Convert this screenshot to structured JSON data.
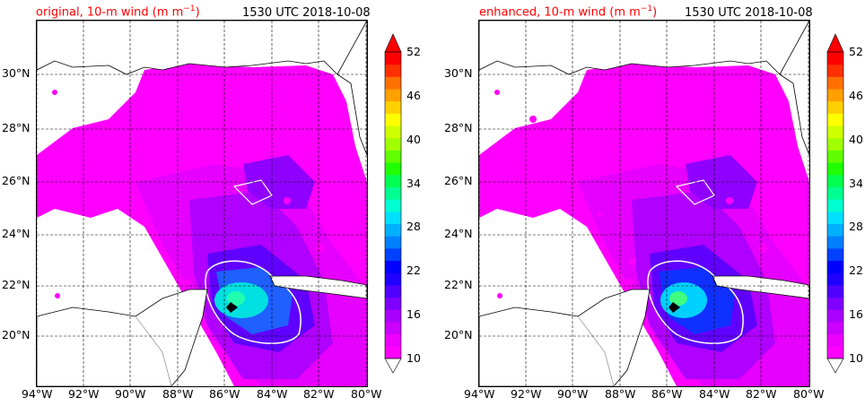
{
  "panels": [
    {
      "title_left": "original, 10-m wind (m m",
      "title_sup": "−1",
      "title_close": ")",
      "title_right": "1530 UTC 2018-10-08"
    },
    {
      "title_left": "enhanced, 10-m wind (m m",
      "title_sup": "−1",
      "title_close": ")",
      "title_right": "1530 UTC 2018-10-08"
    }
  ],
  "lat_labels": [
    "30°N",
    "28°N",
    "26°N",
    "24°N",
    "22°N",
    "20°N"
  ],
  "lon_labels": [
    "94°W",
    "92°W",
    "90°W",
    "88°W",
    "86°W",
    "84°W",
    "82°W",
    "80°W"
  ],
  "colorbar": {
    "ticks": [
      "52",
      "46",
      "40",
      "34",
      "28",
      "22",
      "16",
      "10"
    ],
    "colors": [
      "#ff00ff",
      "#ee00ff",
      "#cc00ff",
      "#aa00ff",
      "#8000ff",
      "#5000ff",
      "#2000ff",
      "#0000ff",
      "#0040ff",
      "#0080ff",
      "#00b0ff",
      "#00e0ff",
      "#00ffd0",
      "#00ff90",
      "#00ff50",
      "#20ff00",
      "#60ff00",
      "#a0ff00",
      "#d0ff00",
      "#ffff00",
      "#ffd000",
      "#ffa000",
      "#ff7000",
      "#ff3000",
      "#ff0000"
    ],
    "over_color": "#ff0000",
    "under_color": "#ffffff"
  }
}
